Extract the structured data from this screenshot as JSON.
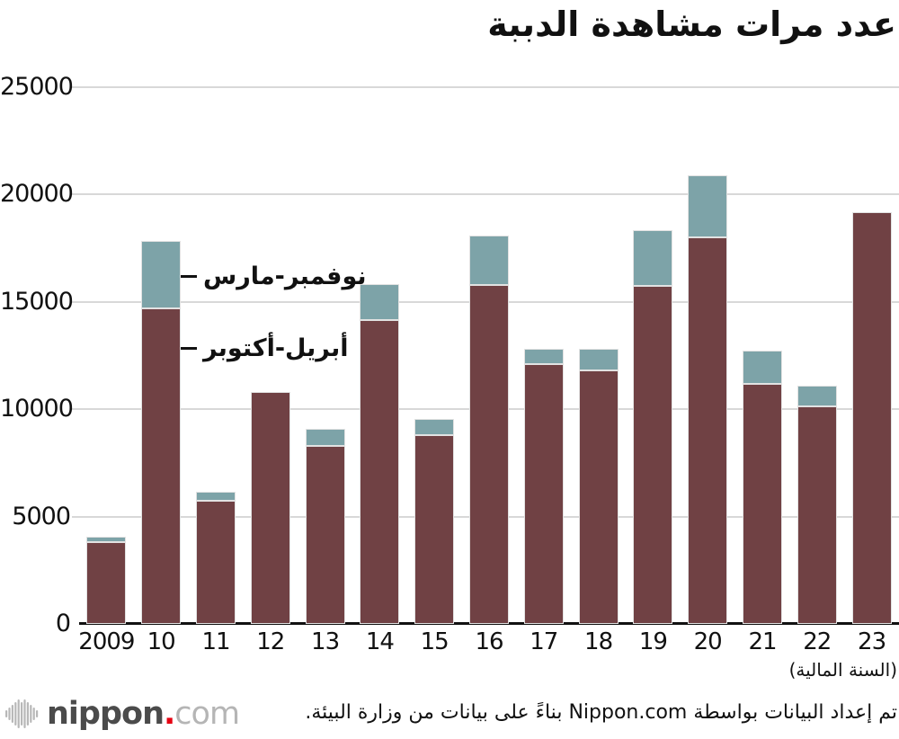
{
  "title": "عدد مرات مشاهدة الدببة",
  "chart_data": {
    "type": "bar",
    "stacked": true,
    "title": "عدد مرات مشاهدة الدببة",
    "categories": [
      "2009",
      "10",
      "11",
      "12",
      "13",
      "14",
      "15",
      "16",
      "17",
      "18",
      "19",
      "20",
      "21",
      "22",
      "23"
    ],
    "series": [
      {
        "name": "أبريل-أكتوبر",
        "color": "#704144",
        "values": [
          3800,
          14700,
          5750,
          10800,
          8300,
          14150,
          8800,
          15800,
          12100,
          11800,
          15750,
          18000,
          11200,
          10150,
          19200
        ]
      },
      {
        "name": "نوفمبر-مارس",
        "color": "#7DA3A8",
        "values": [
          250,
          3150,
          400,
          0,
          800,
          1700,
          750,
          2300,
          700,
          1000,
          2600,
          2900,
          1550,
          950,
          0
        ]
      }
    ],
    "ylim": [
      0,
      25000
    ],
    "y_ticks": [
      0,
      5000,
      10000,
      15000,
      20000,
      25000
    ],
    "xlabel": "(السنة المالية)",
    "grid": true,
    "legend_position": "inline annotations pointing at 2010 bar"
  },
  "annotations": [
    {
      "text": "نوفمبر-مارس"
    },
    {
      "text": "أبريل-أكتوبر"
    }
  ],
  "footer": {
    "attribution": "تم إعداد البيانات بواسطة Nippon.com بناءً على بيانات من وزارة البيئة.",
    "logo": {
      "nippon": "nippon",
      "dot": ".",
      "com": "com"
    }
  },
  "colors": {
    "apr_oct": "#704144",
    "nov_mar": "#7DA3A8",
    "gridline": "#D8D8D8",
    "bar_stroke": "#E2E2E2",
    "axis": "#111111",
    "logo_red": "#E60012",
    "logo_gray": "#4B4B4B",
    "logo_light": "#B5B5B5"
  }
}
